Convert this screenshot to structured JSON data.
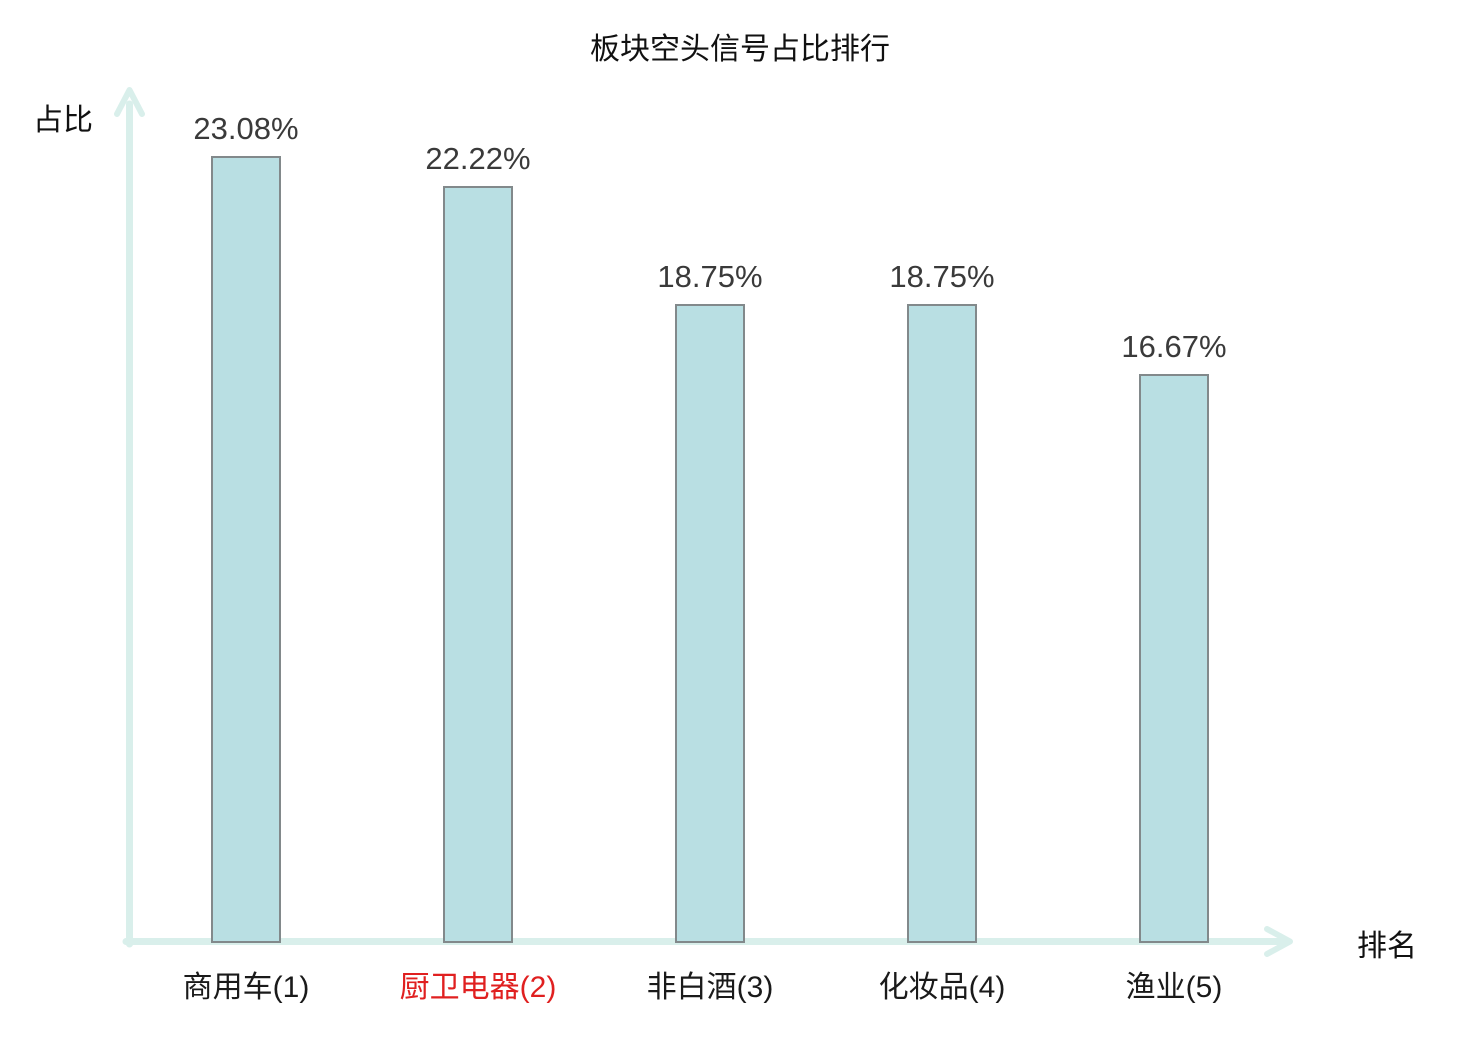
{
  "title": "板块空头信号占比排行",
  "axes": {
    "y_label": "占比",
    "x_label": "排名"
  },
  "colors": {
    "bar_fill": "#b9dfe3",
    "bar_border": "#82898b",
    "axis": "#d9efeb",
    "value_label": "#3a3a3a",
    "category_default": "#1a1a1a",
    "category_highlight": "#e02020"
  },
  "chart_data": {
    "type": "bar",
    "title": "板块空头信号占比排行",
    "xlabel": "排名",
    "ylabel": "占比",
    "categories": [
      "商用车(1)",
      "厨卫电器(2)",
      "非白酒(3)",
      "化妆品(4)",
      "渔业(5)"
    ],
    "values": [
      23.08,
      22.22,
      18.75,
      18.75,
      16.67
    ],
    "value_labels": [
      "23.08%",
      "22.22%",
      "18.75%",
      "18.75%",
      "16.67%"
    ],
    "highlighted_category_index": 1,
    "highlighted_category": "厨卫电器(2)",
    "ylim": [
      0,
      24.2
    ],
    "grid": false,
    "legend": null,
    "bar_orientation": "vertical"
  }
}
